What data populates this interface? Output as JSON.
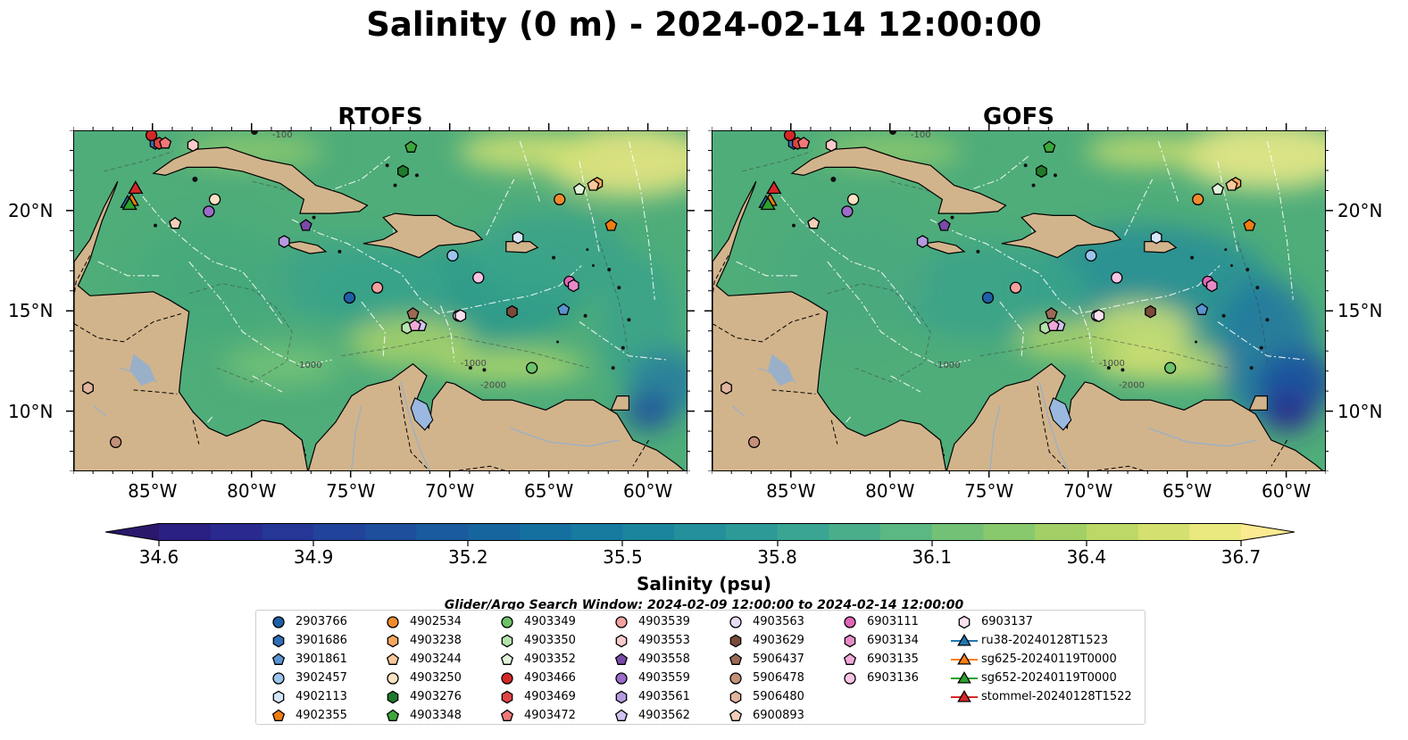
{
  "title": "Salinity (0 m) - 2024-02-14 12:00:00",
  "panels": [
    {
      "title": "RTOFS",
      "variant": "rtofs"
    },
    {
      "title": "GOFS",
      "variant": "gofs"
    }
  ],
  "map_extent": {
    "lon": [
      -89,
      -58
    ],
    "lat": [
      7,
      24
    ]
  },
  "axes": {
    "lon_ticks": [
      -85,
      -80,
      -75,
      -70,
      -65,
      -60
    ],
    "lon_tick_labels": [
      "85°W",
      "80°W",
      "75°W",
      "70°W",
      "65°W",
      "60°W"
    ],
    "lat_ticks": [
      10,
      15,
      20
    ],
    "lat_tick_labels": [
      "10°N",
      "15°N",
      "20°N"
    ]
  },
  "bathymetry_contour_labels": [
    "-100",
    "-1000",
    "-1000",
    "-2000"
  ],
  "colors": {
    "land": "#d2b48c",
    "deep_low": "#2e1e6b",
    "mid": "#4aa874",
    "high": "#fde792",
    "lake": "#9ab8e0"
  },
  "colorbar": {
    "label": "Salinity (psu)",
    "min": 34.6,
    "max": 36.7,
    "ticks": [
      "34.6",
      "34.9",
      "35.2",
      "35.5",
      "35.8",
      "36.1",
      "36.4",
      "36.7"
    ],
    "colors": [
      "#2a186c",
      "#2a1f82",
      "#29298f",
      "#263696",
      "#22439a",
      "#1e4f9d",
      "#1a5a9e",
      "#16659f",
      "#15709f",
      "#177a9f",
      "#1c859e",
      "#23909c",
      "#2d9a98",
      "#3aa593",
      "#4aae8b",
      "#5cb882",
      "#72c177",
      "#89c96e",
      "#a2d066",
      "#bcd867",
      "#d4e06f",
      "#eae97f",
      "#fdeb92"
    ]
  },
  "search_window": "Glider/Argo Search Window: 2024-02-09 12:00:00 to 2024-02-14 12:00:00",
  "legend": [
    {
      "label": "2903766",
      "marker": "circle",
      "color": "#1f5fa8"
    },
    {
      "label": "3901686",
      "marker": "hexagon",
      "color": "#2f6db5"
    },
    {
      "label": "3901861",
      "marker": "pentagon",
      "color": "#5b93d1"
    },
    {
      "label": "3902457",
      "marker": "circle",
      "color": "#9cc5ee"
    },
    {
      "label": "4902113",
      "marker": "hexagon",
      "color": "#d4e6f7"
    },
    {
      "label": "4902355",
      "marker": "pentagon",
      "color": "#f07c12"
    },
    {
      "label": "4902534",
      "marker": "circle",
      "color": "#f08a2c"
    },
    {
      "label": "4903238",
      "marker": "hexagon",
      "color": "#f7a65c"
    },
    {
      "label": "4903244",
      "marker": "pentagon",
      "color": "#f8c89a"
    },
    {
      "label": "4903250",
      "marker": "circle",
      "color": "#fce1c4"
    },
    {
      "label": "4903276",
      "marker": "hexagon",
      "color": "#1f7a2a"
    },
    {
      "label": "4903348",
      "marker": "pentagon",
      "color": "#3da63a"
    },
    {
      "label": "4903349",
      "marker": "circle",
      "color": "#6cc36a"
    },
    {
      "label": "4903350",
      "marker": "hexagon",
      "color": "#b5e3ad"
    },
    {
      "label": "4903352",
      "marker": "pentagon",
      "color": "#e0f3da"
    },
    {
      "label": "4903466",
      "marker": "circle",
      "color": "#d62728"
    },
    {
      "label": "4903469",
      "marker": "hexagon",
      "color": "#e04444"
    },
    {
      "label": "4903472",
      "marker": "pentagon",
      "color": "#f07878"
    },
    {
      "label": "4903539",
      "marker": "circle",
      "color": "#f4a0a0"
    },
    {
      "label": "4903553",
      "marker": "hexagon",
      "color": "#fbcaca"
    },
    {
      "label": "4903558",
      "marker": "pentagon",
      "color": "#7a4aa8"
    },
    {
      "label": "4903559",
      "marker": "circle",
      "color": "#9b6cc8"
    },
    {
      "label": "4903561",
      "marker": "hexagon",
      "color": "#b59ae0"
    },
    {
      "label": "4903562",
      "marker": "pentagon",
      "color": "#d3c3f0"
    },
    {
      "label": "4903563",
      "marker": "circle",
      "color": "#e6dbf7"
    },
    {
      "label": "4903629",
      "marker": "hexagon",
      "color": "#7a4a3a"
    },
    {
      "label": "5906437",
      "marker": "pentagon",
      "color": "#9a6a55"
    },
    {
      "label": "5906478",
      "marker": "circle",
      "color": "#c4907a"
    },
    {
      "label": "5906480",
      "marker": "hexagon",
      "color": "#e2b4a0"
    },
    {
      "label": "6900893",
      "marker": "pentagon",
      "color": "#f3cfb8"
    },
    {
      "label": "6903111",
      "marker": "circle",
      "color": "#e066b8"
    },
    {
      "label": "6903134",
      "marker": "hexagon",
      "color": "#e88ac8"
    },
    {
      "label": "6903135",
      "marker": "pentagon",
      "color": "#f2a8d8"
    },
    {
      "label": "6903136",
      "marker": "circle",
      "color": "#f7c4e4"
    },
    {
      "label": "6903137",
      "marker": "hexagon",
      "color": "#fbe0f0"
    },
    {
      "label": "ru38-20240128T1523",
      "marker": "triangle-line",
      "color": "#1f77b4"
    },
    {
      "label": "sg625-20240119T0000",
      "marker": "triangle-line",
      "color": "#ff7f0e"
    },
    {
      "label": "sg652-20240119T0000",
      "marker": "triangle-line",
      "color": "#2ca02c"
    },
    {
      "label": "stommel-20240128T1522",
      "marker": "triangle-line",
      "color": "#d62728"
    }
  ],
  "floats": [
    {
      "id": "2903766",
      "lon": -75.1,
      "lat": 15.7
    },
    {
      "id": "3901686",
      "lon": -84.9,
      "lat": 23.4
    },
    {
      "id": "3901861",
      "lon": -64.3,
      "lat": 15.1
    },
    {
      "id": "3902457",
      "lon": -69.9,
      "lat": 17.8
    },
    {
      "id": "4902113",
      "lon": -66.6,
      "lat": 18.7
    },
    {
      "id": "4902355",
      "lon": -61.9,
      "lat": 19.3
    },
    {
      "id": "4902534",
      "lon": -64.5,
      "lat": 20.6
    },
    {
      "id": "4903238",
      "lon": -62.6,
      "lat": 21.4
    },
    {
      "id": "4903244",
      "lon": -62.8,
      "lat": 21.3
    },
    {
      "id": "4903250",
      "lon": -81.9,
      "lat": 20.6
    },
    {
      "id": "4903276",
      "lon": -72.4,
      "lat": 22.0
    },
    {
      "id": "4903348",
      "lon": -72.0,
      "lat": 23.2
    },
    {
      "id": "4903349",
      "lon": -65.9,
      "lat": 12.2
    },
    {
      "id": "4903350",
      "lon": -72.2,
      "lat": 14.2
    },
    {
      "id": "4903352",
      "lon": -63.5,
      "lat": 21.1
    },
    {
      "id": "4903466",
      "lon": -85.1,
      "lat": 23.8
    },
    {
      "id": "4903469",
      "lon": -84.7,
      "lat": 23.4
    },
    {
      "id": "4903472",
      "lon": -84.4,
      "lat": 23.4
    },
    {
      "id": "4903539",
      "lon": -73.7,
      "lat": 16.2
    },
    {
      "id": "4903553",
      "lon": -83.0,
      "lat": 23.3
    },
    {
      "id": "4903558",
      "lon": -77.3,
      "lat": 19.3
    },
    {
      "id": "4903559",
      "lon": -82.2,
      "lat": 20.0
    },
    {
      "id": "4903561",
      "lon": -78.4,
      "lat": 18.5
    },
    {
      "id": "4903562",
      "lon": -71.5,
      "lat": 14.3
    },
    {
      "id": "4903563",
      "lon": -69.6,
      "lat": 14.8
    },
    {
      "id": "4903629",
      "lon": -66.9,
      "lat": 15.0
    },
    {
      "id": "5906437",
      "lon": -71.9,
      "lat": 14.9
    },
    {
      "id": "5906478",
      "lon": -86.9,
      "lat": 8.5
    },
    {
      "id": "5906480",
      "lon": -88.3,
      "lat": 11.2
    },
    {
      "id": "6900893",
      "lon": -83.9,
      "lat": 19.4
    },
    {
      "id": "6903111",
      "lon": -64.0,
      "lat": 16.5
    },
    {
      "id": "6903134",
      "lon": -63.8,
      "lat": 16.3
    },
    {
      "id": "6903135",
      "lon": -71.8,
      "lat": 14.3
    },
    {
      "id": "6903136",
      "lon": -68.6,
      "lat": 16.7
    },
    {
      "id": "6903137",
      "lon": -69.5,
      "lat": 14.8
    }
  ],
  "gliders": [
    {
      "id": "ru38-20240128T1523",
      "lon": -86.3,
      "lat": 20.4
    },
    {
      "id": "sg625-20240119T0000",
      "lon": -86.1,
      "lat": 20.5
    },
    {
      "id": "sg652-20240119T0000",
      "lon": -86.2,
      "lat": 20.3
    },
    {
      "id": "stommel-20240128T1522",
      "lon": -85.9,
      "lat": 21.1
    }
  ]
}
